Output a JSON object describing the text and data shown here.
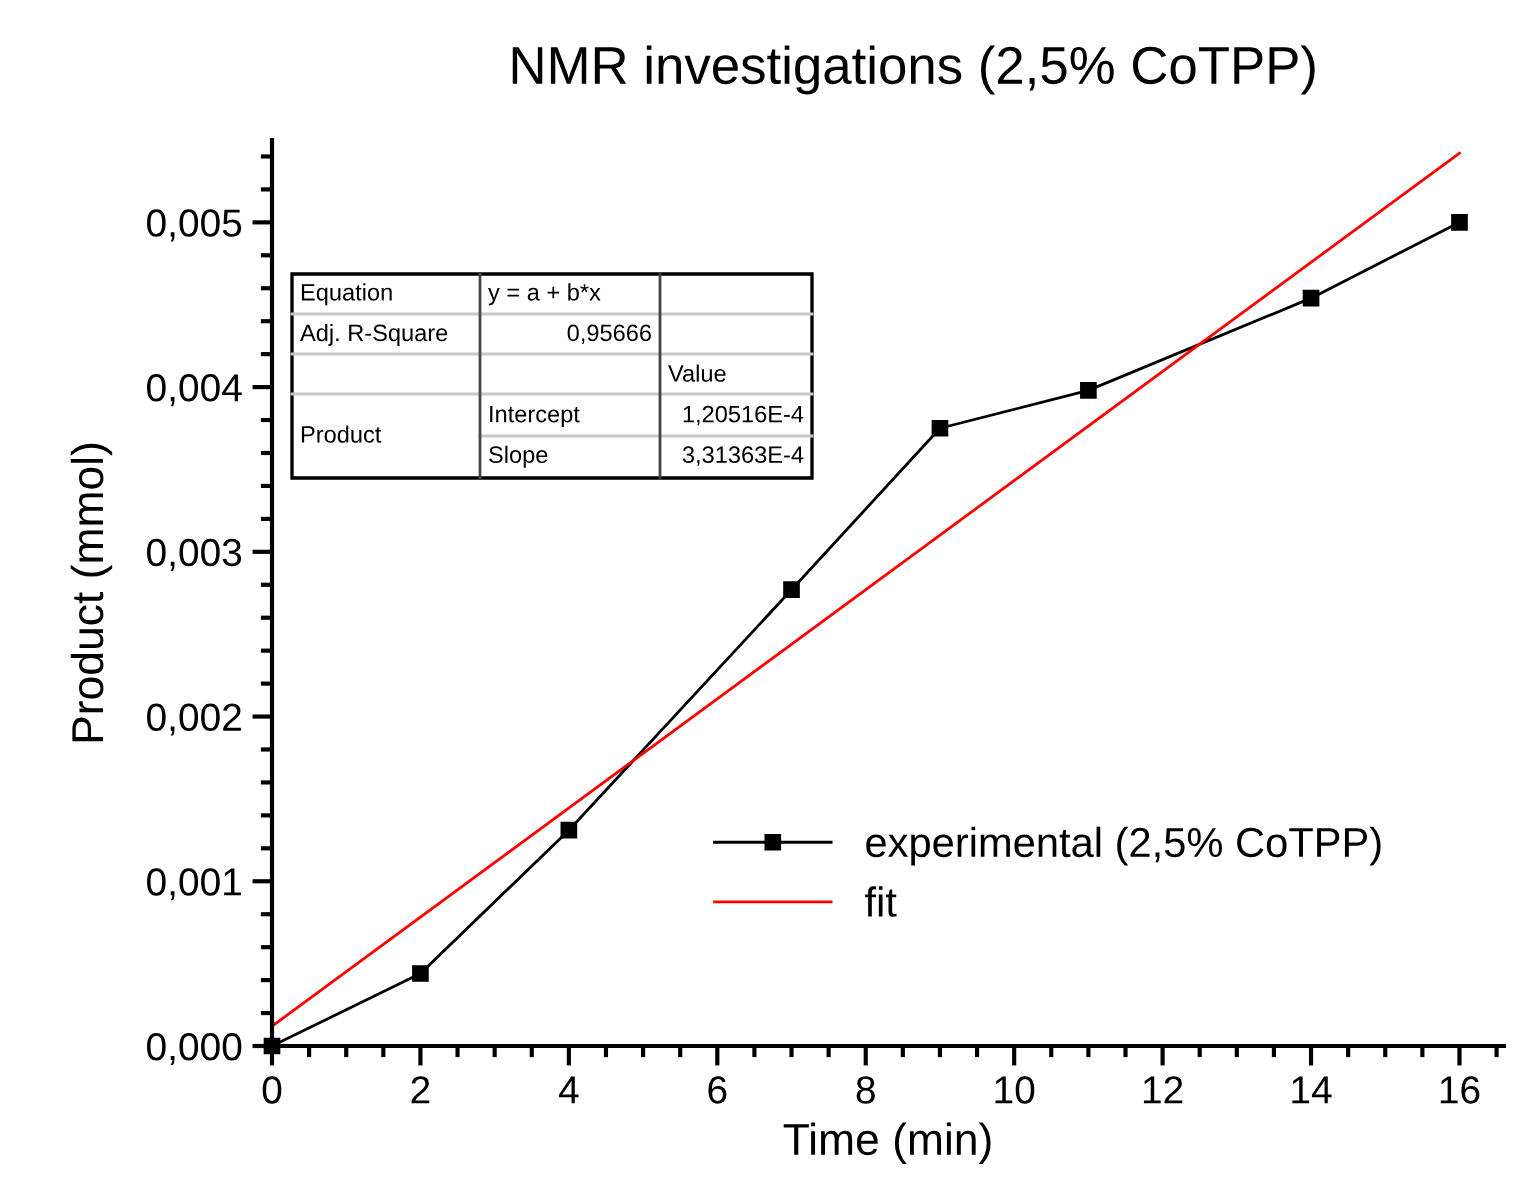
{
  "chart_data": {
    "type": "line",
    "title": "NMR investigations (2,5% CoTPP)",
    "xlabel": "Time (min)",
    "ylabel": "Product (mmol)",
    "x": [
      0,
      2,
      4,
      7,
      9,
      11,
      14,
      16
    ],
    "series": [
      {
        "name": "experimental (2,5% CoTPP)",
        "color": "#000000",
        "marker": "square",
        "values": [
          0,
          0.00044,
          0.00131,
          0.00277,
          0.00375,
          0.00398,
          0.00454,
          0.005
        ]
      },
      {
        "name": "fit",
        "color": "#ff0000",
        "marker": "none",
        "x": [
          0,
          16
        ],
        "values": [
          0.00012,
          0.00542
        ]
      }
    ],
    "xlim": [
      0,
      16.6
    ],
    "xticks": [
      0,
      2,
      4,
      6,
      8,
      10,
      12,
      14,
      16
    ],
    "ylim": [
      0,
      0.0055
    ],
    "yticks": [
      {
        "value": 0,
        "label": "0,000"
      },
      {
        "value": 0.001,
        "label": "0,001"
      },
      {
        "value": 0.002,
        "label": "0,002"
      },
      {
        "value": 0.003,
        "label": "0,003"
      },
      {
        "value": 0.004,
        "label": "0,004"
      },
      {
        "value": 0.005,
        "label": "0,005"
      }
    ],
    "grid": false,
    "legend": "bottom right",
    "line_style": "solid",
    "annotations": [
      "Equation",
      "y = a + b*x",
      "Adj. R-Square",
      "0,95666",
      "Value",
      "Product",
      "Intercept",
      "1,20516E-4",
      "Slope",
      "3,31363E-4"
    ]
  }
}
